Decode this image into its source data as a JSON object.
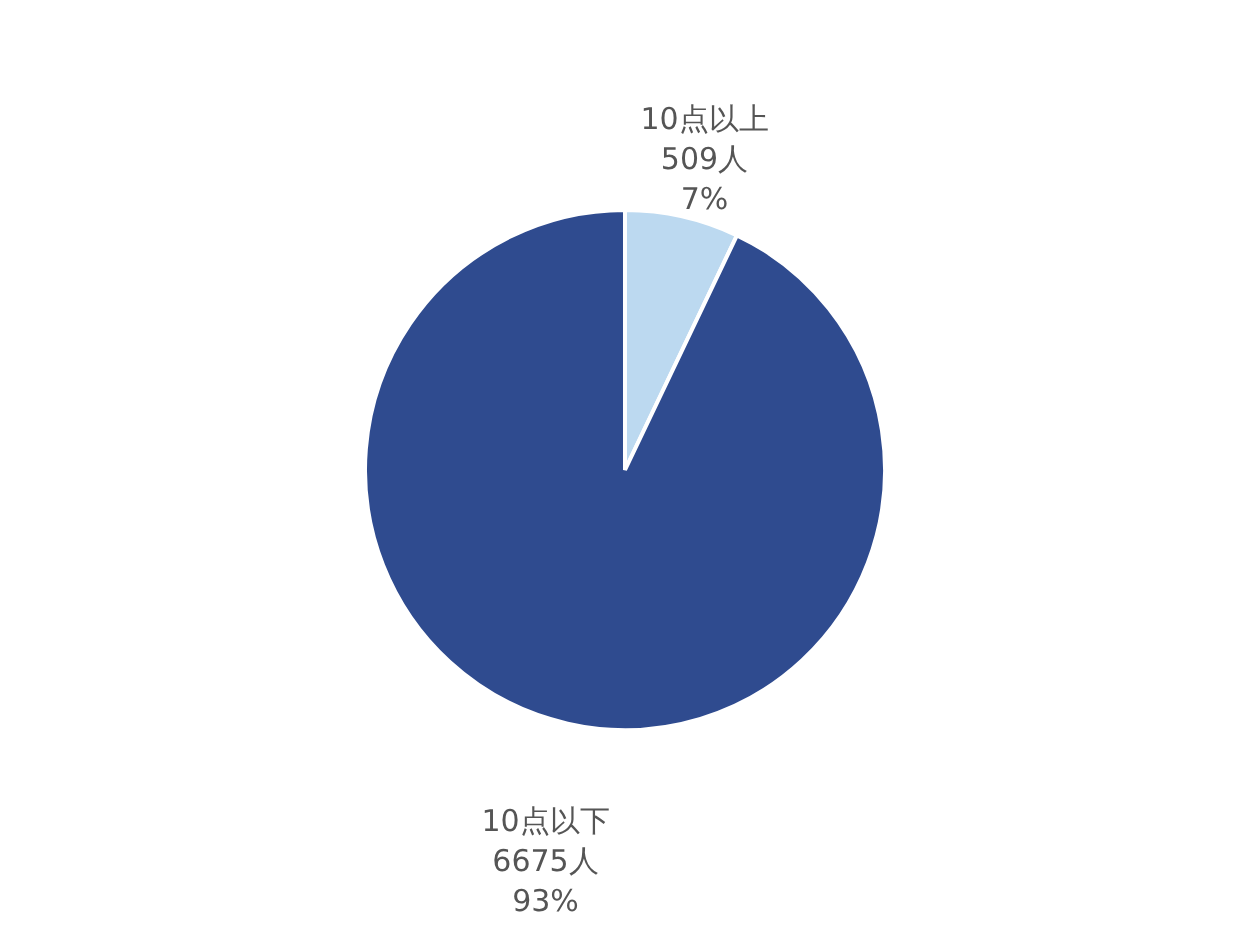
{
  "chart_data": {
    "type": "pie",
    "categories": [
      "10点以上",
      "10点以下"
    ],
    "values": [
      509,
      6675
    ],
    "value_labels": [
      "509人\n7%",
      "6675人\n93%"
    ],
    "colors": [
      "#bcd9f0",
      "#2f4b8f"
    ],
    "legend": false
  }
}
